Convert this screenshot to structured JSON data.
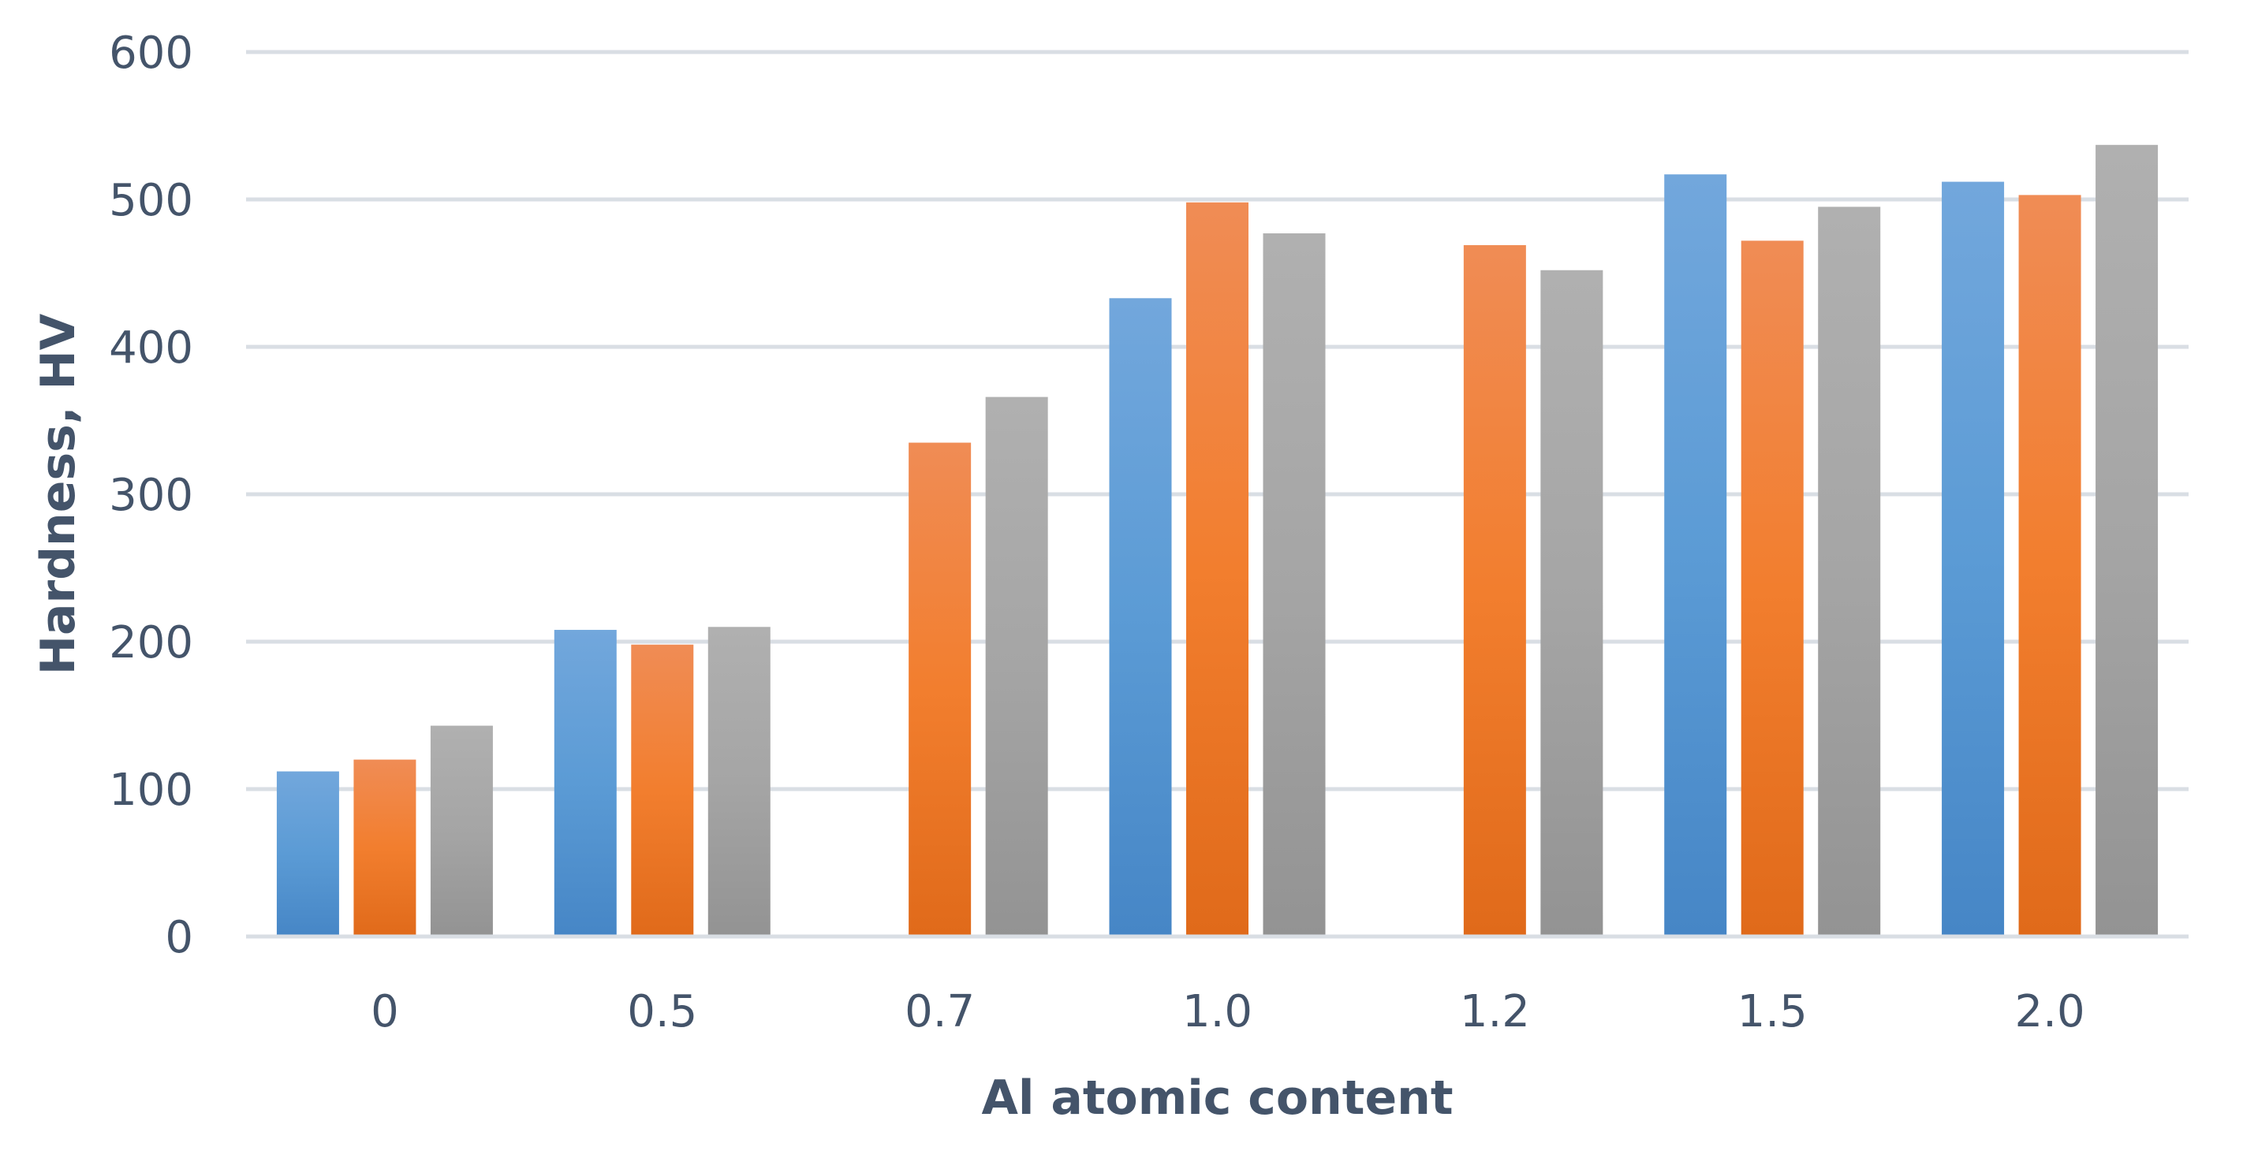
{
  "chart_data": {
    "type": "bar",
    "categories": [
      "0",
      "0.5",
      "0.7",
      "1.0",
      "1.2",
      "1.5",
      "2.0"
    ],
    "series": [
      {
        "values": [
          112,
          208,
          null,
          433,
          null,
          517,
          512
        ]
      },
      {
        "values": [
          120,
          198,
          335,
          498,
          469,
          472,
          503
        ]
      },
      {
        "values": [
          143,
          210,
          366,
          477,
          452,
          495,
          537
        ]
      }
    ],
    "colors": [
      "#5b9bd5",
      "#ed7d31",
      "#a5a5a5"
    ],
    "xlabel": "Al atomic content",
    "ylabel": "Hardness, HV",
    "ylim": [
      0,
      600
    ],
    "yticks": [
      "0",
      "100",
      "200",
      "300",
      "400",
      "500",
      "600"
    ],
    "grid": true,
    "legend": "none"
  }
}
